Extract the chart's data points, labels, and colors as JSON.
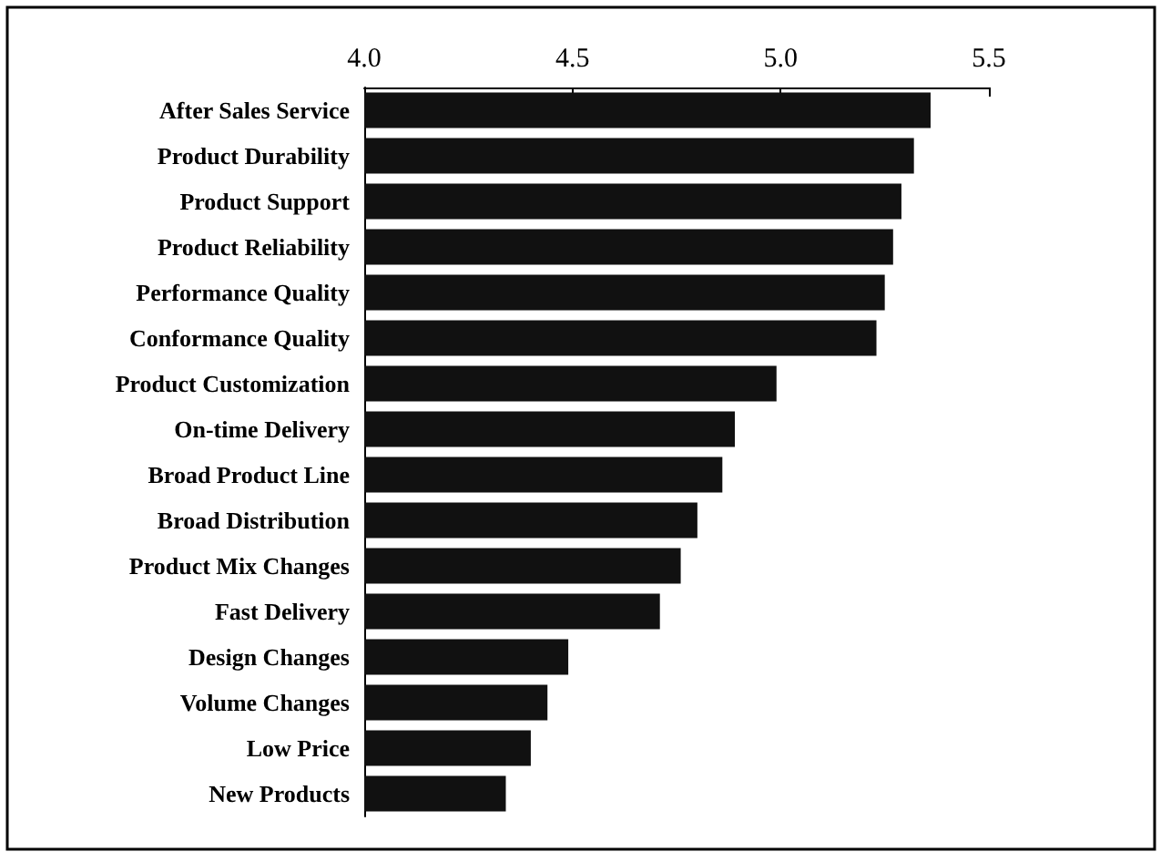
{
  "chart_data": {
    "type": "bar",
    "orientation": "horizontal",
    "categories": [
      "After Sales Service",
      "Product Durability",
      "Product Support",
      "Product Reliability",
      "Performance Quality",
      "Conformance Quality",
      "Product Customization",
      "On-time Delivery",
      "Broad Product Line",
      "Broad Distribution",
      "Product Mix Changes",
      "Fast Delivery",
      "Design Changes",
      "Volume Changes",
      "Low Price",
      "New Products"
    ],
    "values": [
      5.36,
      5.32,
      5.29,
      5.27,
      5.25,
      5.23,
      4.99,
      4.89,
      4.86,
      4.8,
      4.76,
      4.71,
      4.49,
      4.44,
      4.4,
      4.34
    ],
    "color": "#111111",
    "xlim": [
      4.0,
      5.5
    ],
    "xticks": [
      {
        "value": 4.0,
        "label": "4.0"
      },
      {
        "value": 4.5,
        "label": "4.5"
      },
      {
        "value": 5.0,
        "label": "5.0"
      },
      {
        "value": 5.5,
        "label": "5.5"
      }
    ],
    "grid": false
  }
}
